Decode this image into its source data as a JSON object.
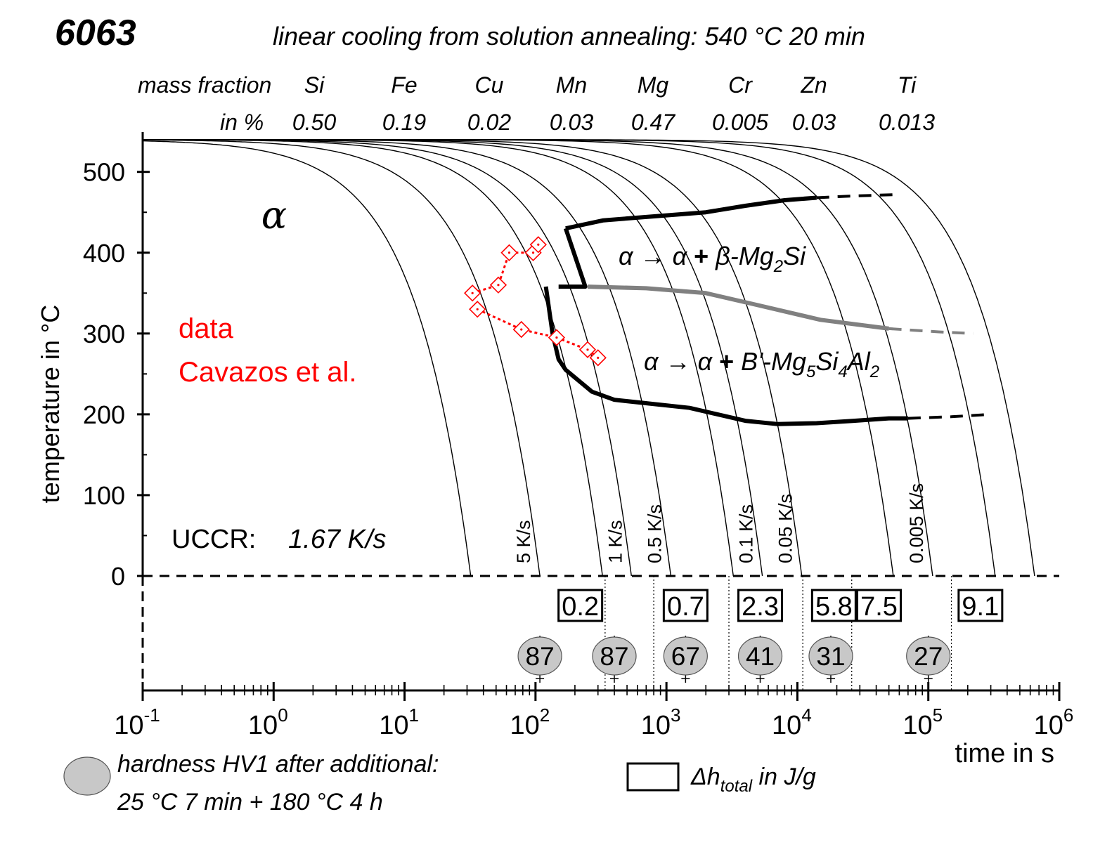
{
  "chart_data": {
    "type": "line",
    "alloy": "6063",
    "title": "linear cooling from solution annealing: 540 °C 20 min",
    "composition": {
      "row_label_1": "mass fraction",
      "row_label_2": "in %",
      "elements": [
        {
          "symbol": "Si",
          "value": "0.50"
        },
        {
          "symbol": "Fe",
          "value": "0.19"
        },
        {
          "symbol": "Cu",
          "value": "0.02"
        },
        {
          "symbol": "Mn",
          "value": "0.03"
        },
        {
          "symbol": "Mg",
          "value": "0.47"
        },
        {
          "symbol": "Cr",
          "value": "0.005"
        },
        {
          "symbol": "Zn",
          "value": "0.03"
        },
        {
          "symbol": "Ti",
          "value": "0.013"
        }
      ]
    },
    "xlabel": "time in s",
    "ylabel": "temperature in °C",
    "x_scale": "log",
    "xlim": [
      0.1,
      1000000
    ],
    "ylim": [
      0,
      550
    ],
    "x_ticks": [
      {
        "value": 0.1,
        "base": "10",
        "exp": "-1"
      },
      {
        "value": 1,
        "base": "10",
        "exp": "0"
      },
      {
        "value": 10,
        "base": "10",
        "exp": "1"
      },
      {
        "value": 100,
        "base": "10",
        "exp": "2"
      },
      {
        "value": 1000,
        "base": "10",
        "exp": "3"
      },
      {
        "value": 10000,
        "base": "10",
        "exp": "4"
      },
      {
        "value": 100000,
        "base": "10",
        "exp": "5"
      },
      {
        "value": 1000000,
        "base": "10",
        "exp": "6"
      }
    ],
    "y_ticks": [
      0,
      100,
      200,
      300,
      400,
      500
    ],
    "cooling_curves": {
      "start_temperature": 540,
      "end_times_s": [
        32,
        108,
        325,
        540,
        1080,
        3240,
        5400,
        10800,
        54000,
        108000,
        324000,
        648000
      ],
      "rate_labels": [
        {
          "text": "5 K/s",
          "end_time": 108
        },
        {
          "text": "1 K/s",
          "end_time": 540
        },
        {
          "text": "0.5 K/s",
          "end_time": 1080
        },
        {
          "text": "0.1 K/s",
          "end_time": 5400
        },
        {
          "text": "0.05 K/s",
          "end_time": 10800
        },
        {
          "text": "0.005 K/s",
          "end_time": 108000
        }
      ]
    },
    "regions": [
      {
        "name": "alpha",
        "label": "α"
      }
    ],
    "reactions": {
      "beta": {
        "a1": "α",
        "arrow": "→",
        "a2": "α",
        "plus": "+",
        "phase": "β",
        "mg": "-Mg",
        "sub1": "2",
        "rest": "Si"
      },
      "b_prime": {
        "a1": "α",
        "arrow": "→",
        "a2": "α",
        "plus": "+",
        "p1": "B'-Mg",
        "sub1": "5",
        "p2": "Si",
        "sub2": "4",
        "p3": "Al",
        "sub3": "2"
      }
    },
    "series": [
      {
        "name": "beta start (upper)",
        "color": "#000000",
        "points": [
          [
            170,
            430
          ],
          [
            330,
            440
          ],
          [
            2000,
            450
          ],
          [
            4000,
            458
          ],
          [
            8000,
            465
          ],
          [
            14000,
            468
          ]
        ],
        "dashed": [
          [
            14000,
            468
          ],
          [
            25000,
            470
          ],
          [
            60000,
            472
          ]
        ]
      },
      {
        "name": "B' start",
        "color": "#808080",
        "points": [
          [
            250,
            358
          ],
          [
            700,
            356
          ],
          [
            2000,
            350
          ],
          [
            5000,
            335
          ],
          [
            15000,
            317
          ],
          [
            50000,
            306
          ]
        ],
        "dashed": [
          [
            50000,
            306
          ],
          [
            120000,
            302
          ],
          [
            220000,
            300
          ]
        ]
      },
      {
        "name": "B' end (lower)",
        "color": "#000000",
        "points": [
          [
            120,
            358
          ],
          [
            135,
            300
          ],
          [
            150,
            268
          ],
          [
            170,
            255
          ],
          [
            270,
            228
          ],
          [
            400,
            218
          ],
          [
            1500,
            208
          ],
          [
            4000,
            192
          ],
          [
            7000,
            188
          ],
          [
            14000,
            189
          ],
          [
            27000,
            192
          ],
          [
            50000,
            195
          ],
          [
            70000,
            195
          ]
        ],
        "dashed": [
          [
            70000,
            195
          ],
          [
            150000,
            197
          ],
          [
            300000,
            200
          ]
        ]
      },
      {
        "name": "beta bracket",
        "color": "#000000",
        "points": [
          [
            150,
            358
          ],
          [
            240,
            358
          ],
          [
            170,
            430
          ]
        ]
      }
    ],
    "measured_data": {
      "label_line1": "data",
      "label_line2": "Cavazos et al.",
      "color": "#ff0000",
      "upper_points": [
        [
          33,
          350
        ],
        [
          52,
          360
        ],
        [
          63,
          400
        ],
        [
          96,
          400
        ],
        [
          105,
          410
        ]
      ],
      "lower_points": [
        [
          36,
          330
        ],
        [
          78,
          305
        ],
        [
          145,
          295
        ],
        [
          250,
          280
        ],
        [
          300,
          270
        ]
      ]
    },
    "uccr": {
      "label": "UCCR:",
      "value": "1.67 K/s"
    },
    "enthalpy_boxes": [
      {
        "text": "0.2",
        "time": 220
      },
      {
        "text": "0.7",
        "time": 1400
      },
      {
        "text": "2.3",
        "time": 5200
      },
      {
        "text": "5.8",
        "time": 19000
      },
      {
        "text": "7.5",
        "time": 42000
      },
      {
        "text": "9.1",
        "time": 250000
      }
    ],
    "divider_times": [
      340,
      800,
      3000,
      11000,
      26000,
      150000
    ],
    "hardness": [
      {
        "text": "87",
        "time": 108
      },
      {
        "text": "87",
        "time": 400
      },
      {
        "text": "67",
        "time": 1400
      },
      {
        "text": "41",
        "time": 5200
      },
      {
        "text": "31",
        "time": 18000
      },
      {
        "text": "27",
        "time": 100000
      }
    ],
    "legend": {
      "hardness_line1": "hardness HV1 after additional:",
      "hardness_line2": "25 °C 7 min + 180 °C 4 h",
      "enthalpy_dh": "Δh",
      "enthalpy_sub": "total",
      "enthalpy_rest": " in J/g"
    },
    "colors": {
      "axis": "#000000",
      "curves": "#000000",
      "grey_line": "#808080",
      "data": "#ff0000",
      "hardness_fill": "#c8c8c8"
    }
  }
}
